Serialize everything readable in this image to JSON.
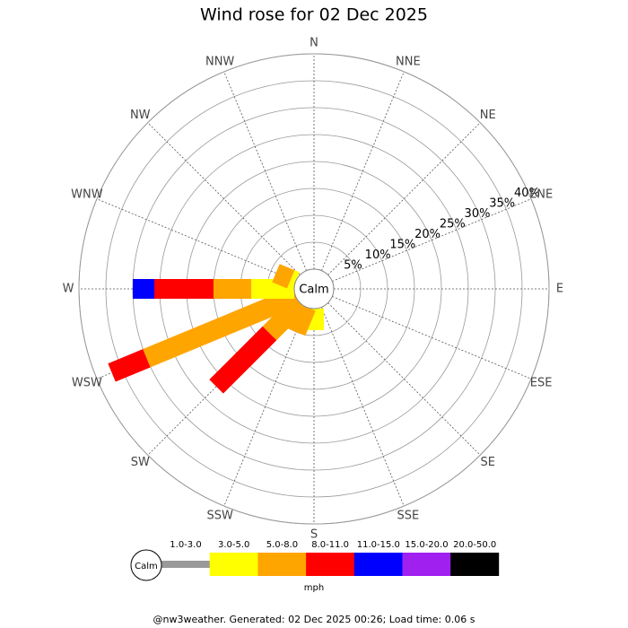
{
  "chart_data": {
    "type": "wind-rose",
    "title": "Wind rose for 02 Dec 2025",
    "categories": [
      "N",
      "NNE",
      "NE",
      "ENE",
      "E",
      "ESE",
      "SE",
      "SSE",
      "S",
      "SSW",
      "SW",
      "WSW",
      "W",
      "WNW",
      "NW",
      "NNW"
    ],
    "series": [
      {
        "name": "1.0-3.0",
        "color": "#999999",
        "values": [
          0,
          0,
          0,
          0,
          0,
          0,
          0,
          0,
          0,
          0,
          0,
          0,
          0,
          0,
          0,
          0
        ]
      },
      {
        "name": "3.0-5.0",
        "color": "#ffff00",
        "values": [
          0,
          0,
          0,
          0,
          0,
          0,
          0,
          0,
          4,
          0,
          0,
          0,
          8,
          1,
          0,
          0
        ]
      },
      {
        "name": "5.0-8.0",
        "color": "#ffa500",
        "values": [
          0,
          0,
          0,
          0,
          0,
          0,
          0,
          0,
          0,
          5,
          8,
          30,
          7,
          3,
          0,
          0
        ]
      },
      {
        "name": "8.0-11.0",
        "color": "#ff0000",
        "values": [
          0,
          0,
          0,
          0,
          0,
          0,
          0,
          0,
          0,
          0,
          14,
          7,
          11,
          0,
          0,
          0
        ]
      },
      {
        "name": "11.0-15.0",
        "color": "#0000ff",
        "values": [
          0,
          0,
          0,
          0,
          0,
          0,
          0,
          0,
          0,
          0,
          0,
          0,
          4,
          0,
          0,
          0
        ]
      },
      {
        "name": "15.0-20.0",
        "color": "#a020f0",
        "values": [
          0,
          0,
          0,
          0,
          0,
          0,
          0,
          0,
          0,
          0,
          0,
          0,
          0,
          0,
          0,
          0
        ]
      },
      {
        "name": "20.0-50.0",
        "color": "#000000",
        "values": [
          0,
          0,
          0,
          0,
          0,
          0,
          0,
          0,
          0,
          0,
          0,
          0,
          0,
          0,
          0,
          0
        ]
      }
    ],
    "rlim": [
      0,
      40
    ],
    "rticks": [
      {
        "value": 5,
        "label": "5%"
      },
      {
        "value": 10,
        "label": "10%"
      },
      {
        "value": 15,
        "label": "15%"
      },
      {
        "value": 20,
        "label": "20%"
      },
      {
        "value": 25,
        "label": "25%"
      },
      {
        "value": 30,
        "label": "30%"
      },
      {
        "value": 35,
        "label": "35%"
      },
      {
        "value": 40,
        "label": "40%"
      }
    ],
    "center_label": "Calm",
    "legend_unit": "mph",
    "footer": "@nw3weather. Generated: 02 Dec 2025 00:26; Load time: 0.06 s"
  }
}
